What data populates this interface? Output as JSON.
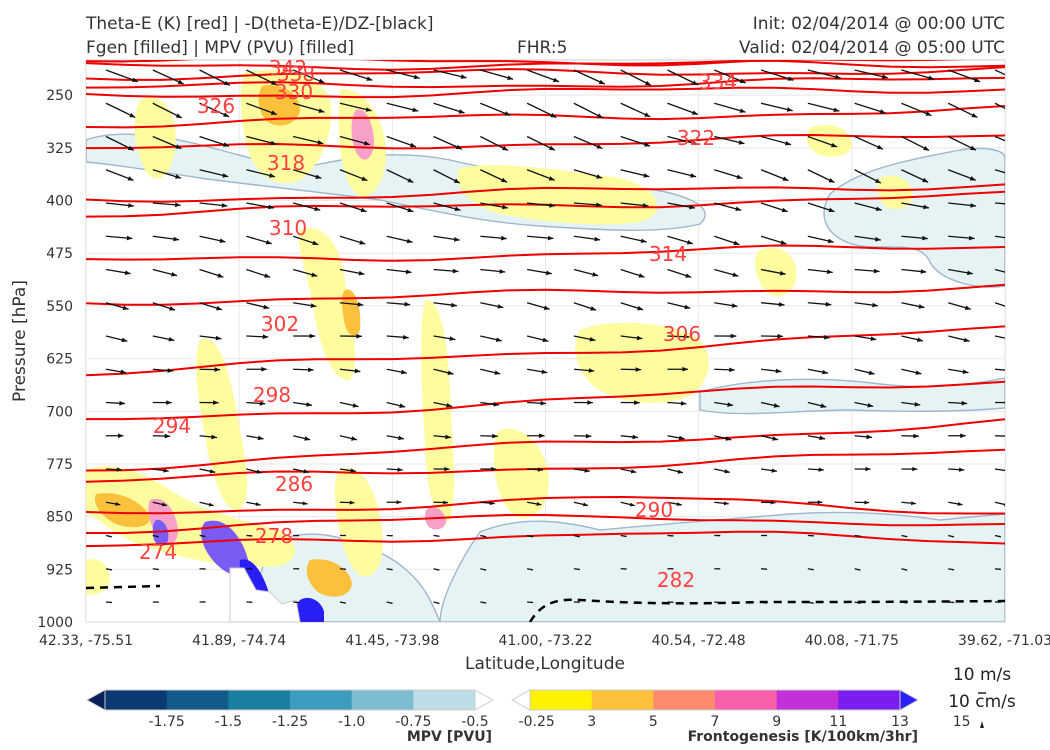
{
  "header": {
    "title_left_1": "Theta-E (K) [red] | -D(theta-E)/DZ-[black]",
    "title_left_2": "Fgen [filled] | MPV (PVU) [filled]",
    "title_center": "FHR:5",
    "title_right_1": "Init: 02/04/2014 @ 00:00 UTC",
    "title_right_2": "Valid: 02/04/2014 @ 05:00 UTC"
  },
  "chart_data": {
    "type": "cross-section",
    "xlabel": "Latitude,Longitude",
    "ylabel": "Pressure [hPa]",
    "x_ticks": [
      "42.33, -75.51",
      "41.89, -74.74",
      "41.45, -73.98",
      "41.00, -73.22",
      "40.54, -72.48",
      "40.08, -71.75",
      "39.62, -71.03"
    ],
    "y_ticks": [
      "250",
      "325",
      "400",
      "475",
      "550",
      "625",
      "700",
      "775",
      "850",
      "925",
      "1000"
    ],
    "ylim": [
      200,
      1000
    ],
    "y_inverted": true,
    "grid": true,
    "theta_e_contours": [
      {
        "label": "342",
        "level": 342
      },
      {
        "label": "338",
        "level": 338
      },
      {
        "label": "334",
        "level": 334
      },
      {
        "label": "330",
        "level": 330
      },
      {
        "label": "326",
        "level": 326
      },
      {
        "label": "322",
        "level": 322
      },
      {
        "label": "318",
        "level": 318
      },
      {
        "label": "314",
        "level": 314
      },
      {
        "label": "310",
        "level": 310
      },
      {
        "label": "306",
        "level": 306
      },
      {
        "label": "302",
        "level": 302
      },
      {
        "label": "298",
        "level": 298
      },
      {
        "label": "294",
        "level": 294
      },
      {
        "label": "290",
        "level": 290
      },
      {
        "label": "286",
        "level": 286
      },
      {
        "label": "282",
        "level": 282
      },
      {
        "label": "278",
        "level": 278
      },
      {
        "label": "274",
        "level": 274
      }
    ],
    "mpv_colorbar": {
      "title": "MPV [PVU]",
      "tick_labels": [
        "-1.75",
        "-1.5",
        "-1.25",
        "-1.0",
        "-0.75",
        "-0.5",
        "-0.25"
      ],
      "colors": [
        "#08205c",
        "#0d3a73",
        "#125a8a",
        "#1a7ea0",
        "#3c9cbd",
        "#7dbdd2",
        "#bcdde6",
        "#ffffff"
      ]
    },
    "fgen_colorbar": {
      "title": "Frontogenesis [K/100km/3hr]",
      "tick_labels": [
        "3",
        "5",
        "7",
        "9",
        "11",
        "13",
        "15"
      ],
      "colors": [
        "#ffffff",
        "#fff200",
        "#fbc13c",
        "#fb8a6e",
        "#f760a8",
        "#c230d8",
        "#7a1ef0",
        "#2a1ef8"
      ]
    },
    "quiver_key": {
      "label_1": "10 m/s",
      "label_2": "10 cm/s"
    }
  }
}
